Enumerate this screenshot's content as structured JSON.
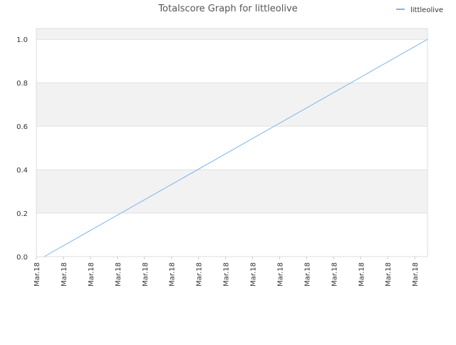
{
  "chart_data": {
    "type": "line",
    "title": "Totalscore Graph for littleolive",
    "xticks": [
      {
        "value": 0,
        "label": "Mar.18"
      },
      {
        "value": 1,
        "label": "Mar.18"
      },
      {
        "value": 2,
        "label": "Mar.18"
      },
      {
        "value": 3,
        "label": "Mar.18"
      },
      {
        "value": 4,
        "label": "Mar.18"
      },
      {
        "value": 5,
        "label": "Mar.18"
      },
      {
        "value": 6,
        "label": "Mar.18"
      },
      {
        "value": 7,
        "label": "Mar.18"
      },
      {
        "value": 8,
        "label": "Mar.18"
      },
      {
        "value": 9,
        "label": "Mar.18"
      },
      {
        "value": 10,
        "label": "Mar.18"
      },
      {
        "value": 11,
        "label": "Mar.18"
      },
      {
        "value": 12,
        "label": "Mar.18"
      },
      {
        "value": 13,
        "label": "Mar.18"
      },
      {
        "value": 14,
        "label": "Mar.18"
      }
    ],
    "xlim": [
      0,
      14.47
    ],
    "ylim": [
      0,
      1.05
    ],
    "yticks": [
      {
        "value": 0,
        "label": "0.0"
      },
      {
        "value": 0.2,
        "label": "0.2"
      },
      {
        "value": 0.4,
        "label": "0.4"
      },
      {
        "value": 0.6,
        "label": "0.6"
      },
      {
        "value": 0.8,
        "label": "0.8"
      },
      {
        "value": 1,
        "label": "1.0"
      }
    ],
    "grid": true,
    "legend": "top-right",
    "series": [
      {
        "name": "littleolive",
        "color": "#7cb5ec",
        "x": [
          0.29,
          14.47
        ],
        "values": [
          0,
          1
        ]
      }
    ]
  }
}
